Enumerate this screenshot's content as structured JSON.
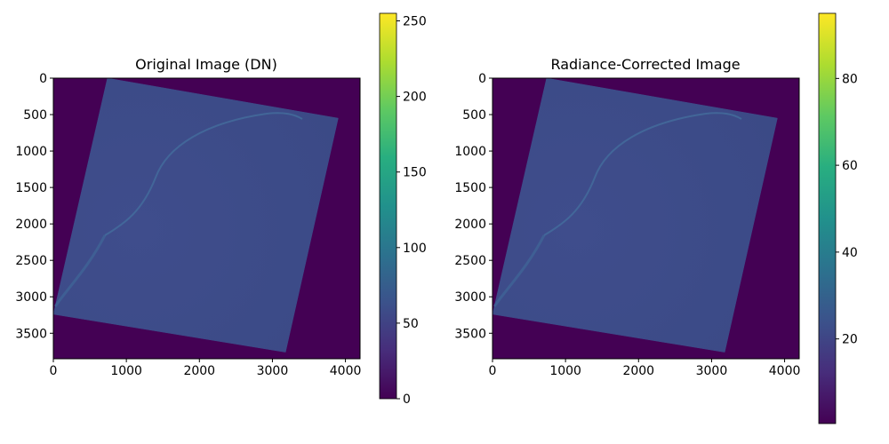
{
  "chart_data": [
    {
      "type": "heatmap",
      "title": "Original Image (DN)",
      "xlabel": "",
      "ylabel": "",
      "x_ticks": [
        0,
        1000,
        2000,
        3000,
        4000
      ],
      "y_ticks": [
        0,
        500,
        1000,
        1500,
        2000,
        2500,
        3000,
        3500
      ],
      "xlim": [
        0,
        4200
      ],
      "ylim": [
        3850,
        0
      ],
      "colorbar": {
        "ticks": [
          0,
          50,
          100,
          150,
          200,
          250
        ],
        "range": [
          0,
          255
        ],
        "colormap": "viridis"
      },
      "footprint_corners": [
        [
          740,
          0
        ],
        [
          3900,
          550
        ],
        [
          3180,
          3760
        ],
        [
          0,
          3240
        ]
      ],
      "background_value": 0,
      "scene_typical_value": 45
    },
    {
      "type": "heatmap",
      "title": "Radiance-Corrected Image",
      "xlabel": "",
      "ylabel": "",
      "x_ticks": [
        0,
        1000,
        2000,
        3000,
        4000
      ],
      "y_ticks": [
        0,
        500,
        1000,
        1500,
        2000,
        2500,
        3000,
        3500
      ],
      "xlim": [
        0,
        4200
      ],
      "ylim": [
        3850,
        0
      ],
      "colorbar": {
        "ticks": [
          20,
          40,
          60,
          80
        ],
        "range": [
          0.5,
          95
        ],
        "colormap": "viridis"
      },
      "footprint_corners": [
        [
          740,
          0
        ],
        [
          3900,
          550
        ],
        [
          3180,
          3760
        ],
        [
          0,
          3240
        ]
      ],
      "background_value": 0.5,
      "scene_typical_value": 17
    }
  ],
  "colors": {
    "viridis_low": "#440154",
    "viridis_mid": "#21918c",
    "viridis_high": "#fde725",
    "scene_fill": "#3b528b"
  }
}
